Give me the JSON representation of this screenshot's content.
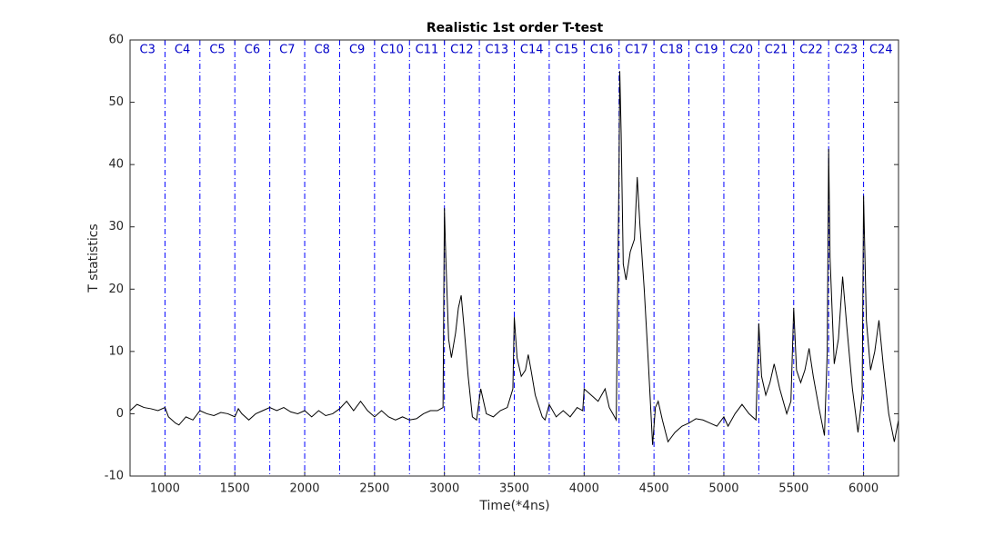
{
  "chart_data": {
    "type": "line",
    "title": "Realistic 1st order T-test",
    "xlabel": "Time(*4ns)",
    "ylabel": "T statistics",
    "xlim": [
      750,
      6250
    ],
    "ylim": [
      -10,
      60
    ],
    "xticks": [
      1000,
      1500,
      2000,
      2500,
      3000,
      3500,
      4000,
      4500,
      5000,
      5500,
      6000
    ],
    "yticks": [
      -10,
      0,
      10,
      20,
      30,
      40,
      50,
      60
    ],
    "grid": false,
    "boundaries": [
      1000,
      1250,
      1500,
      1750,
      2000,
      2250,
      2500,
      2750,
      3000,
      3250,
      3500,
      3750,
      4000,
      4250,
      4500,
      4750,
      5000,
      5250,
      5500,
      5750,
      6000,
      6250
    ],
    "boundary_color": "#0000ff",
    "region_labels": [
      "C3",
      "C4",
      "C5",
      "C6",
      "C7",
      "C8",
      "C9",
      "C10",
      "C11",
      "C12",
      "C13",
      "C14",
      "C15",
      "C16",
      "C17",
      "C18",
      "C19",
      "C20",
      "C21",
      "C22",
      "C23",
      "C24"
    ],
    "region_label_color": "#0000c8",
    "x": [
      750,
      800,
      850,
      900,
      950,
      1000,
      1025,
      1050,
      1075,
      1100,
      1150,
      1200,
      1250,
      1300,
      1350,
      1400,
      1450,
      1500,
      1525,
      1550,
      1600,
      1650,
      1700,
      1750,
      1800,
      1850,
      1900,
      1950,
      2000,
      2050,
      2100,
      2150,
      2200,
      2250,
      2300,
      2350,
      2400,
      2450,
      2500,
      2550,
      2600,
      2650,
      2700,
      2750,
      2800,
      2850,
      2900,
      2950,
      2990,
      3000,
      3010,
      3030,
      3050,
      3080,
      3100,
      3120,
      3140,
      3170,
      3200,
      3230,
      3260,
      3280,
      3300,
      3350,
      3400,
      3450,
      3490,
      3500,
      3520,
      3550,
      3580,
      3600,
      3620,
      3650,
      3700,
      3720,
      3750,
      3800,
      3850,
      3900,
      3950,
      3990,
      4000,
      4050,
      4100,
      4150,
      4180,
      4230,
      4250,
      4255,
      4265,
      4280,
      4300,
      4330,
      4360,
      4380,
      4400,
      4430,
      4460,
      4490,
      4510,
      4530,
      4560,
      4600,
      4650,
      4700,
      4750,
      4800,
      4850,
      4900,
      4950,
      5000,
      5030,
      5080,
      5130,
      5180,
      5230,
      5250,
      5270,
      5300,
      5330,
      5360,
      5400,
      5450,
      5480,
      5500,
      5520,
      5550,
      5580,
      5610,
      5640,
      5680,
      5720,
      5740,
      5750,
      5760,
      5790,
      5820,
      5850,
      5880,
      5920,
      5960,
      5990,
      6000,
      6020,
      6050,
      6080,
      6110,
      6140,
      6180,
      6220,
      6250
    ],
    "series": [
      {
        "color": "#000000",
        "values": [
          0.5,
          1.5,
          1,
          0.8,
          0.5,
          1,
          -0.5,
          -1,
          -1.5,
          -1.8,
          -0.5,
          -1,
          0.5,
          0,
          -0.3,
          0.2,
          0,
          -0.5,
          0.8,
          0,
          -1,
          0,
          0.5,
          1,
          0.5,
          1,
          0.3,
          0,
          0.5,
          -0.5,
          0.5,
          -0.3,
          0,
          0.8,
          2,
          0.5,
          2,
          0.5,
          -0.5,
          0.5,
          -0.5,
          -1,
          -0.5,
          -1,
          -0.8,
          0,
          0.5,
          0.5,
          1,
          33,
          25,
          12,
          9,
          13,
          17,
          19,
          14,
          6,
          -0.5,
          -1,
          4,
          2,
          0,
          -0.5,
          0.5,
          1,
          4,
          15.5,
          9,
          6,
          7,
          9.5,
          7,
          3,
          -0.5,
          -1,
          1.5,
          -0.5,
          0.5,
          -0.5,
          1,
          0.5,
          4,
          3,
          2,
          4,
          1,
          -1,
          40,
          55,
          45,
          24,
          21.5,
          26,
          28,
          38,
          30,
          20,
          8,
          -5,
          1,
          2,
          -1,
          -4.5,
          -3,
          -2,
          -1.5,
          -0.8,
          -1,
          -1.5,
          -2,
          -0.5,
          -2,
          0,
          1.5,
          0,
          -1,
          14.5,
          6,
          3,
          5,
          8,
          4,
          0,
          2,
          17,
          7,
          5,
          7,
          10.5,
          6,
          1,
          -3.5,
          10,
          42.5,
          25,
          8,
          12,
          22,
          14,
          4,
          -3,
          3,
          35,
          15,
          7,
          10,
          15,
          8,
          0,
          -4.5,
          -1
        ]
      }
    ]
  }
}
